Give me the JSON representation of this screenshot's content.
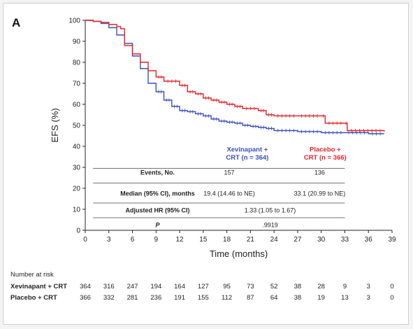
{
  "panel_label": "A",
  "colors": {
    "xevinapant": "#3b4fb8",
    "placebo": "#e0242a",
    "axis": "#222222"
  },
  "chart_data": {
    "type": "line",
    "title": "",
    "xlabel": "Time (months)",
    "ylabel": "EFS (%)",
    "xlim": [
      0,
      39
    ],
    "ylim": [
      0,
      100
    ],
    "xticks": [
      0,
      3,
      6,
      9,
      12,
      15,
      18,
      21,
      24,
      27,
      30,
      33,
      36,
      39
    ],
    "yticks": [
      0,
      10,
      20,
      30,
      40,
      50,
      60,
      70,
      80,
      90,
      100
    ],
    "grid": false,
    "series": [
      {
        "name": "Xevinapant + CRT (n = 364)",
        "legend_line1": "Xevinapant +",
        "legend_line2": "CRT (n = 364)",
        "color": "#3b4fb8",
        "points": [
          [
            0,
            100
          ],
          [
            1,
            99.5
          ],
          [
            2,
            98.5
          ],
          [
            3,
            96.5
          ],
          [
            4,
            93
          ],
          [
            5,
            89
          ],
          [
            6,
            83
          ],
          [
            7,
            77
          ],
          [
            8,
            70
          ],
          [
            9,
            66
          ],
          [
            10,
            62
          ],
          [
            11,
            59
          ],
          [
            12,
            57
          ],
          [
            13,
            56.5
          ],
          [
            14,
            55.5
          ],
          [
            15,
            54.5
          ],
          [
            16,
            53
          ],
          [
            17,
            52
          ],
          [
            18,
            51.5
          ],
          [
            19,
            51
          ],
          [
            20,
            50
          ],
          [
            21,
            49.5
          ],
          [
            22,
            49
          ],
          [
            23,
            48.5
          ],
          [
            24,
            47.5
          ],
          [
            27,
            47
          ],
          [
            30,
            46.5
          ],
          [
            33,
            46.5
          ],
          [
            36,
            46
          ],
          [
            38,
            46
          ]
        ]
      },
      {
        "name": "Placebo + CRT (n = 366)",
        "legend_line1": "Placebo +",
        "legend_line2": "CRT (n = 366)",
        "color": "#e0242a",
        "points": [
          [
            0,
            100
          ],
          [
            1,
            99.5
          ],
          [
            2,
            99
          ],
          [
            3,
            98
          ],
          [
            4,
            97
          ],
          [
            4.5,
            96
          ],
          [
            5,
            88
          ],
          [
            6,
            84
          ],
          [
            7,
            80
          ],
          [
            8,
            76
          ],
          [
            9,
            73
          ],
          [
            10,
            71
          ],
          [
            12,
            69
          ],
          [
            13,
            66
          ],
          [
            14,
            65
          ],
          [
            15,
            63
          ],
          [
            16,
            62
          ],
          [
            17,
            61
          ],
          [
            18,
            60
          ],
          [
            19,
            59
          ],
          [
            20,
            58
          ],
          [
            22,
            57
          ],
          [
            23,
            55
          ],
          [
            24,
            54.5
          ],
          [
            27,
            54.5
          ],
          [
            30,
            54.5
          ],
          [
            30.5,
            51
          ],
          [
            33,
            51
          ],
          [
            33.3,
            47.5
          ],
          [
            38,
            47
          ]
        ]
      }
    ],
    "annotation_table": {
      "columns": [
        "",
        "Xevinapant + CRT",
        "Placebo + CRT"
      ],
      "rows": [
        {
          "label": "Events, No.",
          "xev": "157",
          "pbo": "136"
        },
        {
          "label": "Median (95% CI), months",
          "xev": "19.4 (14.46 to NE)",
          "pbo": "33.1 (20.99 to NE)"
        },
        {
          "label": "Adjusted HR (95% CI)",
          "combined": "1.33 (1.05 to 1.67)"
        },
        {
          "label": "P",
          "combined": ".9919"
        }
      ]
    },
    "risk_table": {
      "header": "Number at risk",
      "times": [
        0,
        3,
        6,
        9,
        12,
        15,
        18,
        21,
        24,
        27,
        30,
        33,
        36,
        39
      ],
      "rows": [
        {
          "label": "Xevinapant + CRT",
          "values": [
            364,
            316,
            247,
            194,
            164,
            127,
            95,
            73,
            52,
            38,
            28,
            9,
            3,
            0
          ]
        },
        {
          "label": "Placebo + CRT",
          "values": [
            366,
            332,
            281,
            236,
            191,
            155,
            112,
            87,
            64,
            38,
            19,
            13,
            3,
            0
          ]
        }
      ]
    }
  }
}
